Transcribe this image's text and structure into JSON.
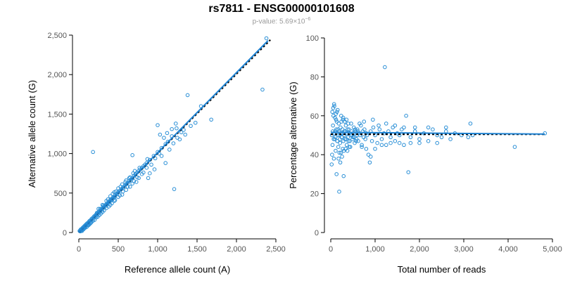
{
  "header": {
    "title": "rs7811 - ENSG00000101608",
    "pvalue_label": "p-value:",
    "pvalue_mantissa": "5.69",
    "pvalue_times": "×10",
    "pvalue_exponent": "−6"
  },
  "colors": {
    "points": "#2a8fd6",
    "fit_line": "#1e82d2",
    "reference_line": "#000000"
  },
  "chart_data": [
    {
      "type": "scatter",
      "xlabel": "Reference allele count (A)",
      "ylabel": "Alternative allele count (G)",
      "xlim": [
        0,
        2500
      ],
      "ylim": [
        0,
        2500
      ],
      "xticks": [
        0,
        500,
        1000,
        1500,
        2000,
        2500
      ],
      "yticks": [
        0,
        500,
        1000,
        1500,
        2000,
        2500
      ],
      "xtick_labels": [
        "0",
        "500",
        "1,000",
        "1,500",
        "2,000",
        "2,500"
      ],
      "ytick_labels": [
        "0",
        "500",
        "1,000",
        "1,500",
        "2,000",
        "2,500"
      ],
      "grid": false,
      "fit_line": {
        "x": [
          0,
          2400
        ],
        "y": [
          0,
          2430
        ],
        "style": "solid"
      },
      "reference_line": {
        "x": [
          0,
          2430
        ],
        "y": [
          0,
          2440
        ],
        "style": "dashed"
      },
      "points": [
        [
          10,
          20
        ],
        [
          15,
          25
        ],
        [
          20,
          18
        ],
        [
          25,
          40
        ],
        [
          30,
          35
        ],
        [
          35,
          45
        ],
        [
          40,
          30
        ],
        [
          45,
          55
        ],
        [
          50,
          60
        ],
        [
          55,
          50
        ],
        [
          60,
          70
        ],
        [
          65,
          62
        ],
        [
          70,
          80
        ],
        [
          75,
          85
        ],
        [
          80,
          75
        ],
        [
          85,
          95
        ],
        [
          90,
          100
        ],
        [
          95,
          90
        ],
        [
          100,
          110
        ],
        [
          110,
          120
        ],
        [
          120,
          115
        ],
        [
          130,
          140
        ],
        [
          140,
          150
        ],
        [
          150,
          145
        ],
        [
          160,
          170
        ],
        [
          170,
          180
        ],
        [
          180,
          175
        ],
        [
          190,
          200
        ],
        [
          200,
          210
        ],
        [
          210,
          205
        ],
        [
          220,
          230
        ],
        [
          230,
          240
        ],
        [
          240,
          235
        ],
        [
          250,
          260
        ],
        [
          260,
          270
        ],
        [
          270,
          265
        ],
        [
          280,
          290
        ],
        [
          290,
          300
        ],
        [
          300,
          295
        ],
        [
          310,
          320
        ],
        [
          320,
          330
        ],
        [
          330,
          325
        ],
        [
          340,
          350
        ],
        [
          350,
          360
        ],
        [
          360,
          355
        ],
        [
          370,
          380
        ],
        [
          380,
          390
        ],
        [
          390,
          385
        ],
        [
          400,
          410
        ],
        [
          410,
          420
        ],
        [
          420,
          415
        ],
        [
          430,
          440
        ],
        [
          440,
          450
        ],
        [
          450,
          445
        ],
        [
          460,
          470
        ],
        [
          480,
          490
        ],
        [
          500,
          510
        ],
        [
          520,
          530
        ],
        [
          540,
          550
        ],
        [
          560,
          570
        ],
        [
          580,
          590
        ],
        [
          600,
          610
        ],
        [
          620,
          630
        ],
        [
          640,
          650
        ],
        [
          660,
          670
        ],
        [
          680,
          690
        ],
        [
          700,
          720
        ],
        [
          720,
          740
        ],
        [
          740,
          760
        ],
        [
          760,
          780
        ],
        [
          780,
          800
        ],
        [
          800,
          820
        ],
        [
          820,
          840
        ],
        [
          840,
          860
        ],
        [
          860,
          880
        ],
        [
          900,
          920
        ],
        [
          950,
          970
        ],
        [
          1000,
          1020
        ],
        [
          1050,
          1070
        ],
        [
          1100,
          1120
        ],
        [
          150,
          120
        ],
        [
          180,
          150
        ],
        [
          220,
          190
        ],
        [
          260,
          220
        ],
        [
          300,
          260
        ],
        [
          350,
          310
        ],
        [
          400,
          350
        ],
        [
          450,
          400
        ],
        [
          500,
          450
        ],
        [
          550,
          480
        ],
        [
          600,
          540
        ],
        [
          650,
          580
        ],
        [
          700,
          650
        ],
        [
          250,
          300
        ],
        [
          300,
          350
        ],
        [
          350,
          400
        ],
        [
          400,
          460
        ],
        [
          450,
          510
        ],
        [
          500,
          560
        ],
        [
          550,
          610
        ],
        [
          600,
          660
        ],
        [
          120,
          90
        ],
        [
          140,
          110
        ],
        [
          80,
          60
        ],
        [
          100,
          70
        ],
        [
          60,
          40
        ],
        [
          40,
          20
        ],
        [
          200,
          160
        ],
        [
          240,
          200
        ],
        [
          280,
          240
        ],
        [
          320,
          280
        ],
        [
          380,
          330
        ],
        [
          420,
          370
        ],
        [
          460,
          410
        ],
        [
          520,
          470
        ],
        [
          560,
          520
        ],
        [
          620,
          580
        ],
        [
          680,
          620
        ],
        [
          740,
          700
        ],
        [
          800,
          740
        ],
        [
          180,
          1020
        ],
        [
          680,
          980
        ],
        [
          1000,
          1360
        ],
        [
          1380,
          1740
        ],
        [
          1210,
          550
        ],
        [
          1550,
          1600
        ],
        [
          2330,
          1810
        ],
        [
          2380,
          2460
        ],
        [
          1680,
          1430
        ],
        [
          1100,
          880
        ],
        [
          1180,
          1310
        ],
        [
          880,
          690
        ],
        [
          960,
          800
        ],
        [
          820,
          760
        ],
        [
          870,
          930
        ],
        [
          1050,
          970
        ],
        [
          1150,
          1050
        ],
        [
          1200,
          1130
        ],
        [
          1280,
          1180
        ],
        [
          1350,
          1240
        ],
        [
          1420,
          1350
        ],
        [
          1480,
          1390
        ],
        [
          1300,
          1270
        ],
        [
          1250,
          1200
        ],
        [
          1130,
          1150
        ],
        [
          1020,
          1000
        ],
        [
          970,
          940
        ],
        [
          920,
          860
        ],
        [
          860,
          820
        ],
        [
          760,
          690
        ],
        [
          730,
          640
        ],
        [
          770,
          820
        ],
        [
          710,
          780
        ],
        [
          650,
          700
        ],
        [
          900,
          750
        ],
        [
          1030,
          1240
        ],
        [
          1120,
          1260
        ],
        [
          1230,
          1380
        ],
        [
          1330,
          1300
        ],
        [
          1180,
          1220
        ],
        [
          1080,
          1200
        ],
        [
          1240,
          1320
        ],
        [
          160,
          130
        ],
        [
          130,
          100
        ],
        [
          110,
          95
        ],
        [
          90,
          80
        ],
        [
          70,
          55
        ],
        [
          50,
          45
        ],
        [
          30,
          25
        ],
        [
          20,
          15
        ],
        [
          230,
          250
        ],
        [
          270,
          300
        ],
        [
          310,
          340
        ],
        [
          370,
          420
        ],
        [
          430,
          490
        ],
        [
          470,
          520
        ],
        [
          530,
          580
        ],
        [
          590,
          640
        ],
        [
          640,
          690
        ],
        [
          690,
          750
        ]
      ]
    },
    {
      "type": "scatter",
      "xlabel": "Total number of reads",
      "ylabel": "Percentage alternative (G)",
      "xlim": [
        0,
        5000
      ],
      "ylim": [
        0,
        100
      ],
      "xticks": [
        0,
        1000,
        2000,
        3000,
        4000,
        5000
      ],
      "yticks": [
        0,
        20,
        40,
        60,
        80,
        100
      ],
      "xtick_labels": [
        "0",
        "1,000",
        "2,000",
        "3,000",
        "4,000",
        "5,000"
      ],
      "ytick_labels": [
        "0",
        "20",
        "40",
        "60",
        "80",
        "100"
      ],
      "grid": false,
      "fit_line": {
        "x": [
          0,
          4830
        ],
        "y": [
          51.5,
          50.6
        ],
        "style": "solid"
      },
      "reference_line": {
        "x": [
          0,
          4830
        ],
        "y": [
          50.5,
          50.5
        ],
        "style": "dashed"
      },
      "points": [
        [
          20,
          35
        ],
        [
          30,
          40
        ],
        [
          40,
          45
        ],
        [
          50,
          55
        ],
        [
          60,
          60
        ],
        [
          70,
          38
        ],
        [
          80,
          65
        ],
        [
          90,
          48
        ],
        [
          100,
          52
        ],
        [
          110,
          42
        ],
        [
          120,
          58
        ],
        [
          130,
          30
        ],
        [
          140,
          62
        ],
        [
          150,
          47
        ],
        [
          160,
          53
        ],
        [
          170,
          44
        ],
        [
          180,
          56
        ],
        [
          190,
          21
        ],
        [
          200,
          50
        ],
        [
          210,
          46
        ],
        [
          220,
          54
        ],
        [
          230,
          41
        ],
        [
          240,
          57
        ],
        [
          250,
          49
        ],
        [
          260,
          51
        ],
        [
          270,
          43
        ],
        [
          280,
          59
        ],
        [
          290,
          29
        ],
        [
          300,
          52
        ],
        [
          320,
          48
        ],
        [
          340,
          55
        ],
        [
          360,
          45
        ],
        [
          380,
          53
        ],
        [
          400,
          47
        ],
        [
          420,
          51
        ],
        [
          440,
          44
        ],
        [
          460,
          56
        ],
        [
          480,
          50
        ],
        [
          500,
          49
        ],
        [
          520,
          54
        ],
        [
          540,
          46
        ],
        [
          560,
          52
        ],
        [
          580,
          48
        ],
        [
          600,
          53
        ],
        [
          620,
          47
        ],
        [
          640,
          51
        ],
        [
          660,
          50
        ],
        [
          680,
          55
        ],
        [
          700,
          45
        ],
        [
          720,
          52
        ],
        [
          740,
          49
        ],
        [
          760,
          53
        ],
        [
          780,
          48
        ],
        [
          800,
          51
        ],
        [
          820,
          50
        ],
        [
          850,
          40
        ],
        [
          880,
          36
        ],
        [
          900,
          52
        ],
        [
          930,
          47
        ],
        [
          960,
          54
        ],
        [
          1000,
          50
        ],
        [
          1050,
          46
        ],
        [
          1100,
          53
        ],
        [
          1150,
          48
        ],
        [
          1200,
          51
        ],
        [
          1220,
          85
        ],
        [
          1250,
          45
        ],
        [
          1300,
          52
        ],
        [
          1350,
          49
        ],
        [
          1400,
          54
        ],
        [
          1450,
          47
        ],
        [
          1500,
          51
        ],
        [
          1550,
          50
        ],
        [
          1600,
          53
        ],
        [
          1650,
          45
        ],
        [
          1700,
          60
        ],
        [
          1750,
          31
        ],
        [
          1800,
          49
        ],
        [
          1900,
          52
        ],
        [
          2000,
          48
        ],
        [
          2100,
          51
        ],
        [
          2200,
          47
        ],
        [
          2300,
          53
        ],
        [
          2400,
          50
        ],
        [
          2500,
          49
        ],
        [
          2600,
          52
        ],
        [
          2700,
          48
        ],
        [
          2800,
          51
        ],
        [
          2950,
          50
        ],
        [
          3100,
          49
        ],
        [
          3150,
          56
        ],
        [
          3200,
          50
        ],
        [
          4150,
          44
        ],
        [
          4830,
          51
        ],
        [
          25,
          50
        ],
        [
          45,
          52
        ],
        [
          65,
          48
        ],
        [
          85,
          51
        ],
        [
          105,
          49
        ],
        [
          125,
          53
        ],
        [
          145,
          47
        ],
        [
          165,
          50
        ],
        [
          185,
          52
        ],
        [
          205,
          48
        ],
        [
          225,
          51
        ],
        [
          245,
          49
        ],
        [
          265,
          53
        ],
        [
          285,
          47
        ],
        [
          305,
          50
        ],
        [
          330,
          52
        ],
        [
          350,
          48
        ],
        [
          370,
          51
        ],
        [
          390,
          49
        ],
        [
          410,
          53
        ],
        [
          430,
          47
        ],
        [
          450,
          50
        ],
        [
          470,
          52
        ],
        [
          490,
          48
        ],
        [
          510,
          51
        ],
        [
          530,
          49
        ],
        [
          550,
          53
        ],
        [
          570,
          47
        ],
        [
          590,
          50
        ],
        [
          610,
          52
        ],
        [
          35,
          62
        ],
        [
          55,
          64
        ],
        [
          75,
          66
        ],
        [
          95,
          59
        ],
        [
          115,
          61
        ],
        [
          135,
          57
        ],
        [
          155,
          63
        ],
        [
          175,
          38
        ],
        [
          195,
          41
        ],
        [
          215,
          36
        ],
        [
          235,
          60
        ],
        [
          255,
          39
        ],
        [
          275,
          58
        ],
        [
          295,
          42
        ],
        [
          315,
          57
        ],
        [
          335,
          43
        ],
        [
          355,
          58
        ],
        [
          375,
          42
        ],
        [
          395,
          56
        ],
        [
          415,
          44
        ],
        [
          650,
          56
        ],
        [
          700,
          44
        ],
        [
          750,
          57
        ],
        [
          800,
          43
        ],
        [
          900,
          39
        ],
        [
          950,
          58
        ],
        [
          1000,
          43
        ],
        [
          1080,
          55
        ],
        [
          1150,
          45
        ],
        [
          1250,
          56
        ],
        [
          1350,
          46
        ],
        [
          1450,
          55
        ],
        [
          1550,
          46
        ],
        [
          1650,
          54
        ],
        [
          1800,
          46
        ],
        [
          1900,
          54
        ],
        [
          2000,
          46
        ],
        [
          2200,
          54
        ],
        [
          2400,
          46
        ],
        [
          2600,
          54
        ]
      ]
    }
  ]
}
